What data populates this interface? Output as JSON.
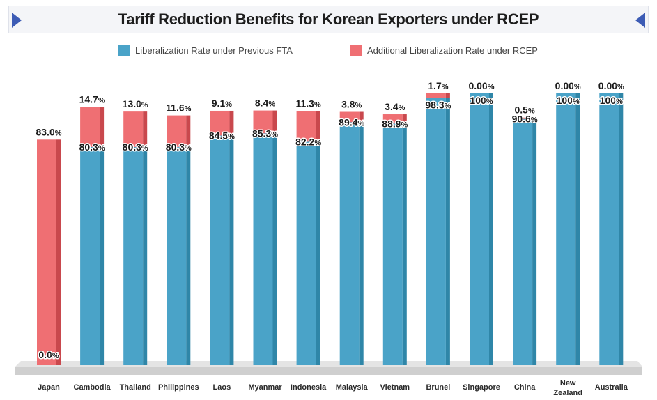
{
  "title": "Tariff Reduction Benefits for Korean Exporters under RCEP",
  "legend": {
    "previous": "Liberalization Rate under Previous FTA",
    "rcep": "Additional Liberalization Rate under RCEP"
  },
  "colors": {
    "previous": "#4aa3c8",
    "previous_side": "#2f86a8",
    "rcep": "#ef6f73",
    "rcep_side": "#c9484d",
    "accent": "#3d5cb5"
  },
  "chart_data": {
    "type": "bar",
    "stacked": true,
    "ylim": [
      0,
      100
    ],
    "categories": [
      "Japan",
      "Cambodia",
      "Thailand",
      "Philippines",
      "Laos",
      "Myanmar",
      "Indonesia",
      "Malaysia",
      "Vietnam",
      "Brunei",
      "Singapore",
      "China",
      "New Zealand",
      "Australia"
    ],
    "series": [
      {
        "name": "Liberalization Rate under Previous FTA",
        "values": [
          0.0,
          80.3,
          80.3,
          80.3,
          84.5,
          85.3,
          82.2,
          89.4,
          88.9,
          98.3,
          100,
          90.6,
          100,
          100
        ],
        "labels": [
          "0.0%",
          "80.3%",
          "80.3%",
          "80.3%",
          "84.5%",
          "85.3%",
          "82.2%",
          "89.4%",
          "88.9%",
          "98.3%",
          "100%",
          "90.6%",
          "100%",
          "100%"
        ]
      },
      {
        "name": "Additional Liberalization Rate under RCEP",
        "values": [
          83.0,
          14.7,
          13.0,
          11.6,
          9.1,
          8.4,
          11.3,
          3.8,
          3.4,
          1.7,
          0.0,
          0.5,
          0.0,
          0.0
        ],
        "labels": [
          "83.0%",
          "14.7%",
          "13.0%",
          "11.6%",
          "9.1%",
          "8.4%",
          "11.3%",
          "3.8%",
          "3.4%",
          "1.7%",
          "0.00%",
          "0.5%",
          "0.00%",
          "0.00%"
        ]
      }
    ]
  }
}
